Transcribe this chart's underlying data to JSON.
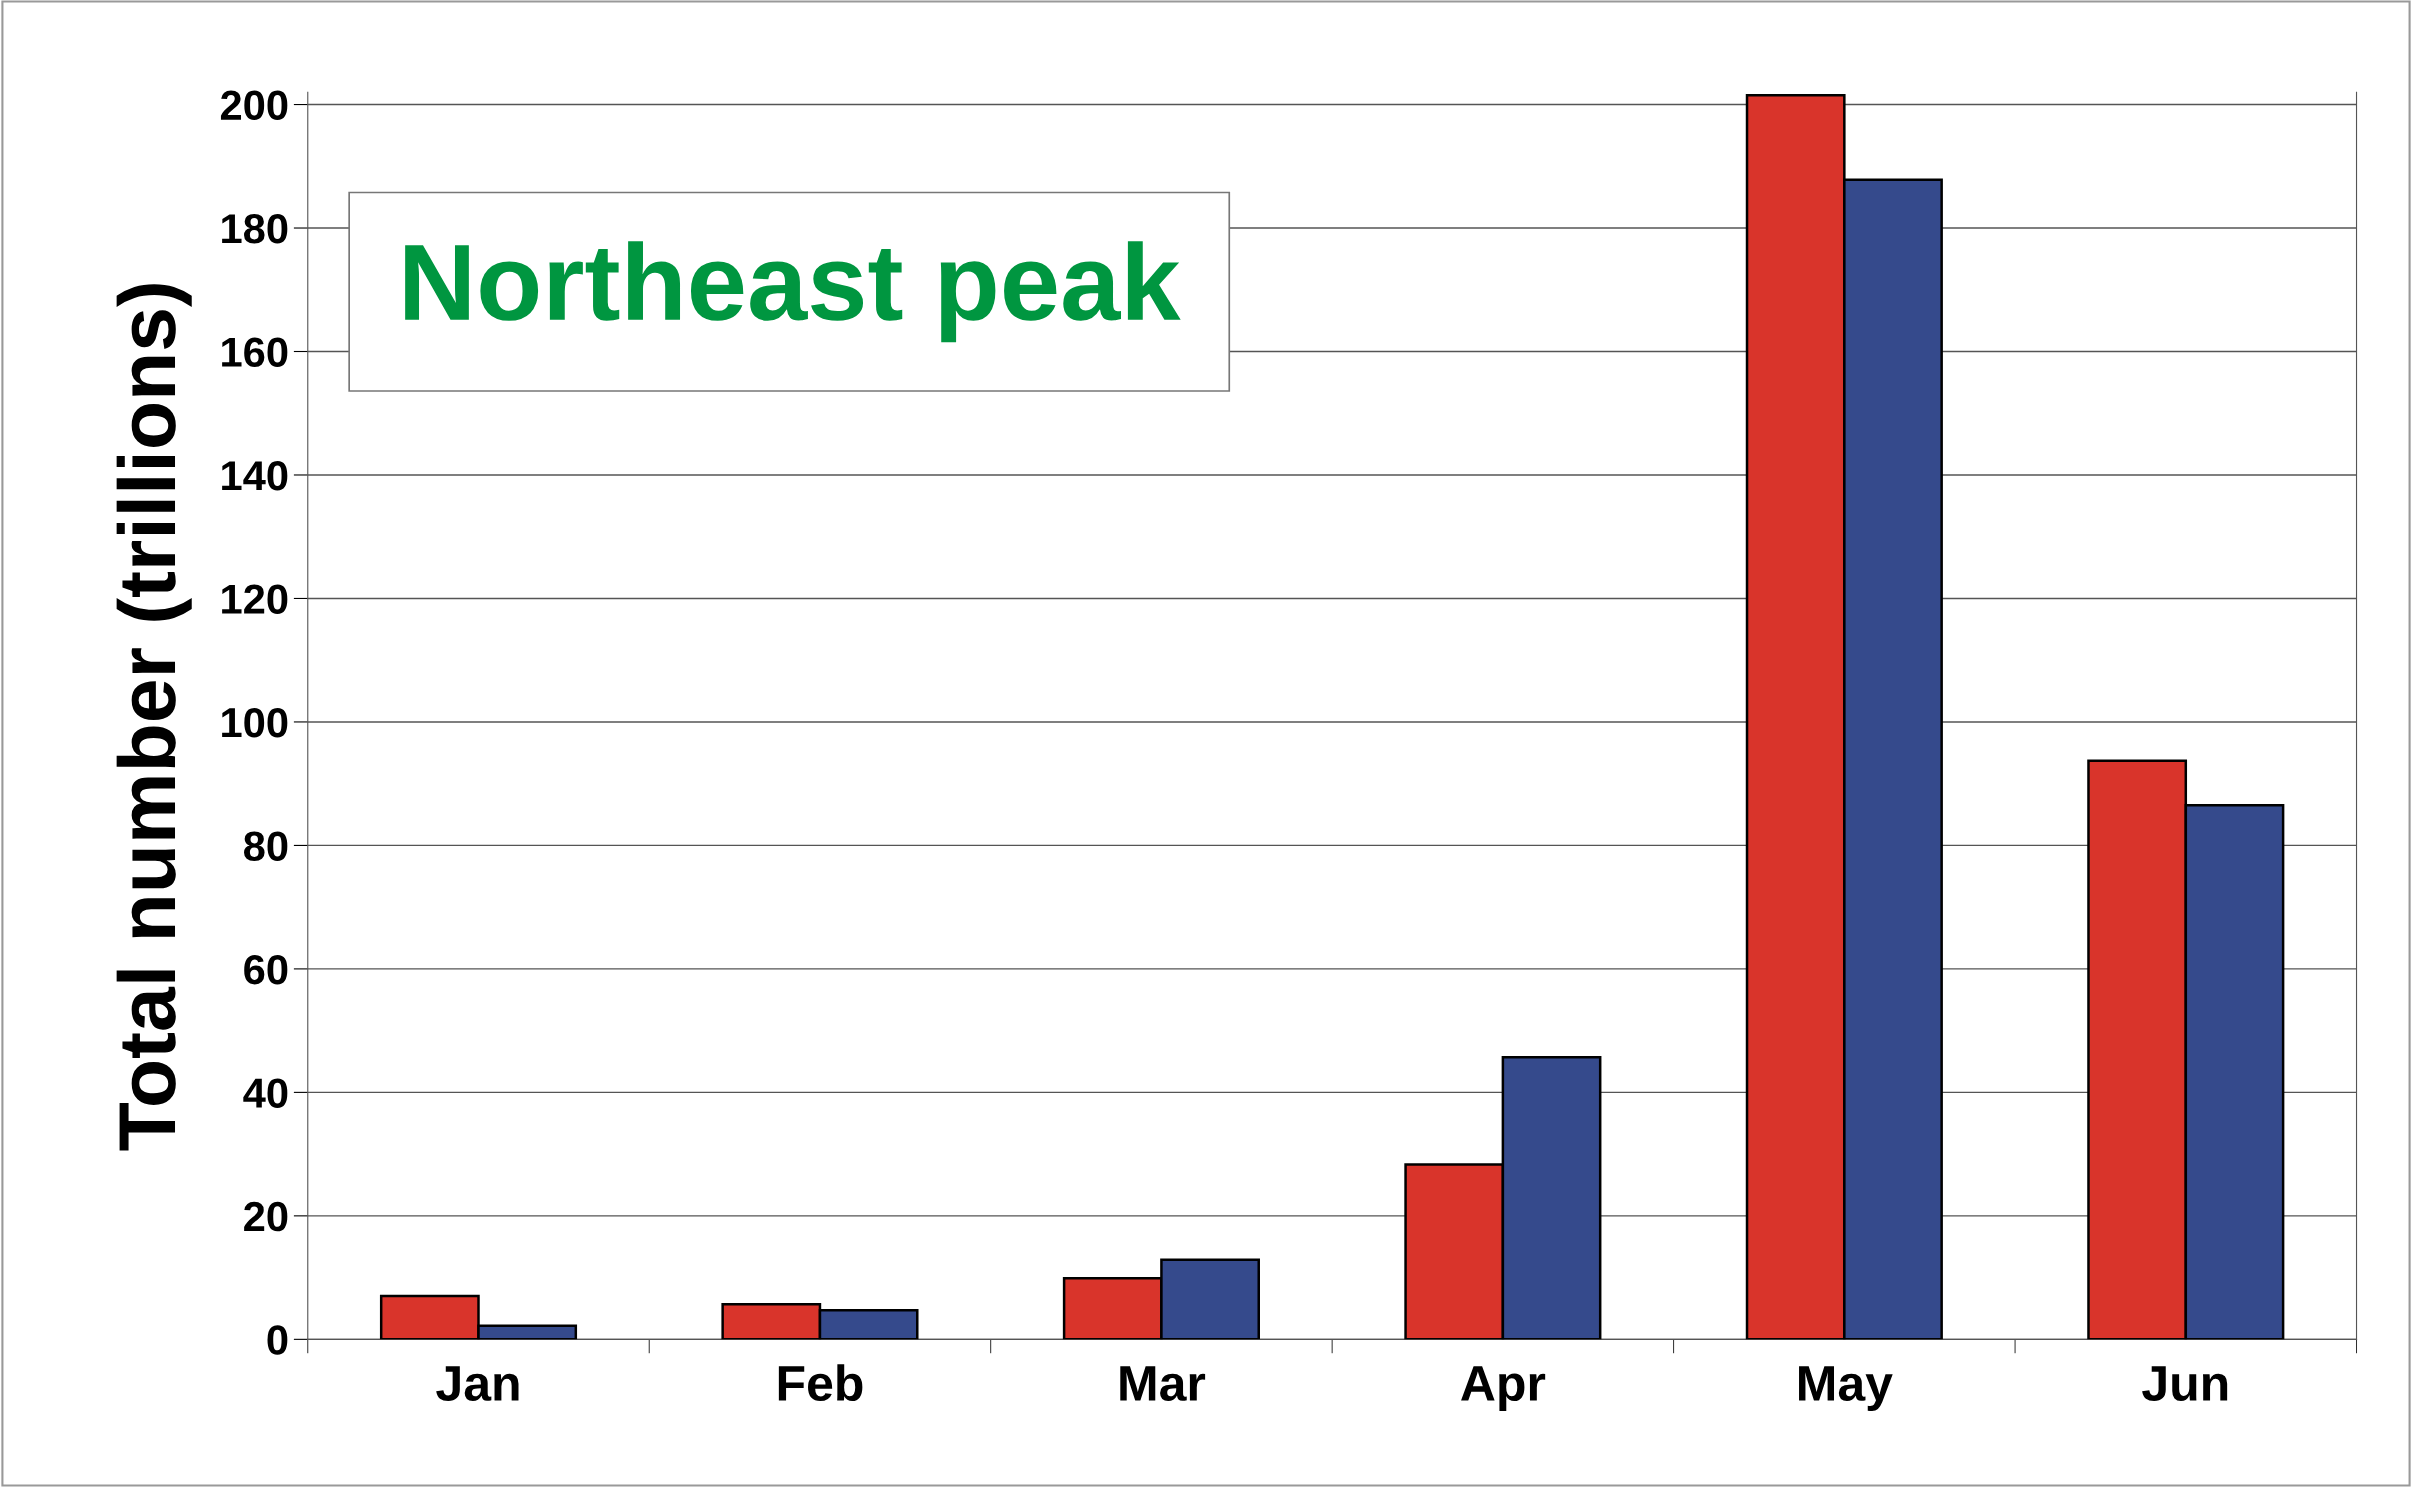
{
  "chart_data": {
    "type": "bar",
    "ylabel": "Total number (trillions)",
    "annotations": [
      "Northeast peak"
    ],
    "categories": [
      "Jan",
      "Feb",
      "Mar",
      "Apr",
      "May",
      "Jun"
    ],
    "series": [
      {
        "color": "#d9342b",
        "values": [
          7.0,
          5.7,
          9.9,
          28.3,
          201.5,
          93.7
        ]
      },
      {
        "color": "#354a8c",
        "values": [
          2.2,
          4.7,
          12.9,
          45.7,
          187.8,
          86.5
        ]
      }
    ],
    "ylim": [
      0,
      202
    ],
    "yticks": [
      0,
      20,
      40,
      60,
      80,
      100,
      120,
      140,
      160,
      180,
      200
    ],
    "grid": "y",
    "legend": false
  }
}
